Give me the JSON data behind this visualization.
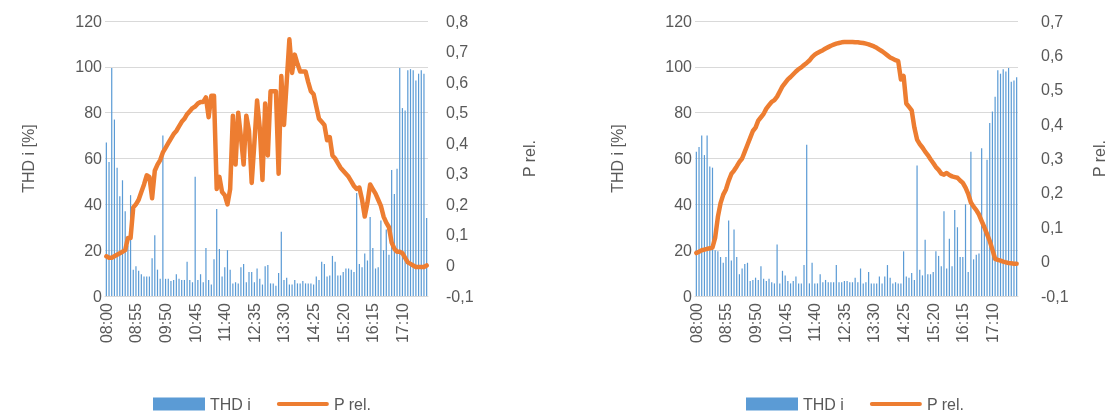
{
  "chart_data": [
    {
      "type": "bar",
      "ylabel": "THD i [%]",
      "y2label": "P rel.",
      "categories": [
        "08:00",
        null,
        null,
        null,
        null,
        null,
        null,
        null,
        null,
        null,
        null,
        "08:55",
        null,
        null,
        null,
        null,
        null,
        null,
        null,
        null,
        null,
        null,
        "09:50",
        null,
        null,
        null,
        null,
        null,
        null,
        null,
        null,
        null,
        null,
        "10:45",
        null,
        null,
        null,
        null,
        null,
        null,
        null,
        null,
        null,
        null,
        "11:40",
        null,
        null,
        null,
        null,
        null,
        null,
        null,
        null,
        null,
        null,
        "12:35",
        null,
        null,
        null,
        null,
        null,
        null,
        null,
        null,
        null,
        null,
        "13:30",
        null,
        null,
        null,
        null,
        null,
        null,
        null,
        null,
        null,
        null,
        "14:25",
        null,
        null,
        null,
        null,
        null,
        null,
        null,
        null,
        null,
        null,
        "15:20",
        null,
        null,
        null,
        null,
        null,
        null,
        null,
        null,
        null,
        null,
        "16:15",
        null,
        null,
        null,
        null,
        null,
        null,
        null,
        null,
        null,
        null,
        "17:10",
        null,
        null,
        null,
        null,
        null,
        null,
        null,
        null,
        null
      ],
      "series": [
        {
          "name": "THD i",
          "color": "#5b9bd5",
          "values": [
            67,
            58.5,
            99.5,
            77,
            56,
            43.5,
            50.5,
            37,
            22,
            44,
            11.5,
            13,
            11,
            9.5,
            8.5,
            8.5,
            8.5,
            16.5,
            26.5,
            11.5,
            7.5,
            70,
            7.5,
            7.5,
            6.5,
            7,
            9.5,
            7.5,
            7,
            7,
            15,
            7,
            6,
            52,
            7,
            9.5,
            6,
            21,
            7,
            5,
            16,
            38,
            20.5,
            8.5,
            12.5,
            20,
            11.5,
            5.5,
            6,
            5.5,
            12.5,
            14,
            6,
            10.5,
            10.5,
            6,
            12,
            7.5,
            5,
            13,
            13.5,
            5.5,
            5.5,
            4.5,
            10,
            28,
            7,
            8,
            5,
            5,
            7,
            5.5,
            5.5,
            6.5,
            5.5,
            5.5,
            5.5,
            5,
            8.5,
            7,
            15,
            14,
            8.5,
            9,
            17.5,
            15,
            9,
            9,
            10.5,
            12,
            12,
            11.5,
            10.5,
            45,
            14,
            12.5,
            18.5,
            15.5,
            34.5,
            21,
            12,
            12.5,
            33,
            20,
            29,
            18,
            55,
            44.5,
            55.5,
            99.5,
            82,
            81,
            98.5,
            99,
            98.5,
            94,
            97,
            98.5,
            97,
            34
          ]
        },
        {
          "name": "P rel.",
          "type": "line",
          "axis": "y2",
          "color": "#ed7d31",
          "values": [
            0.03,
            0.025,
            0.025,
            0.03,
            0.035,
            0.04,
            0.045,
            0.05,
            0.09,
            0.09,
            0.19,
            0.2,
            0.215,
            0.24,
            0.265,
            0.295,
            0.29,
            0.22,
            0.31,
            0.33,
            0.345,
            0.37,
            0.385,
            0.4,
            0.415,
            0.43,
            0.44,
            0.455,
            0.47,
            0.48,
            0.495,
            0.505,
            0.515,
            0.52,
            0.53,
            0.535,
            0.535,
            0.55,
            0.485,
            0.555,
            0.555,
            0.25,
            0.29,
            0.24,
            0.23,
            0.2,
            0.25,
            0.49,
            0.33,
            0.5,
            0.42,
            0.33,
            0.49,
            0.44,
            0.27,
            0.4,
            0.54,
            0.45,
            0.28,
            0.53,
            0.36,
            0.57,
            0.57,
            0.57,
            0.3,
            0.62,
            0.46,
            0.6,
            0.74,
            0.63,
            0.69,
            0.66,
            0.635,
            0.635,
            0.635,
            0.6,
            0.57,
            0.56,
            0.52,
            0.48,
            0.47,
            0.46,
            0.41,
            0.42,
            0.36,
            0.35,
            0.335,
            0.32,
            0.31,
            0.3,
            0.29,
            0.275,
            0.26,
            0.25,
            0.255,
            0.215,
            0.16,
            0.205,
            0.265,
            0.25,
            0.235,
            0.215,
            0.195,
            0.16,
            0.14,
            0.125,
            0.075,
            0.055,
            0.045,
            0.045,
            0.04,
            0.025,
            0.01,
            0.005,
            0,
            -0.005,
            -0.005,
            -0.005,
            -0.005,
            0
          ]
        }
      ],
      "ylim": [
        0,
        120
      ],
      "yticks": [
        0,
        20,
        40,
        60,
        80,
        100,
        120
      ],
      "y2lim": [
        -0.1,
        0.8
      ],
      "y2ticks": [
        {
          "value": -0.1,
          "label": "-0,1"
        },
        0,
        {
          "value": 0.1,
          "label": "0,1"
        },
        {
          "value": 0.2,
          "label": "0,2"
        },
        {
          "value": 0.3,
          "label": "0,3"
        },
        {
          "value": 0.4,
          "label": "0,4"
        },
        {
          "value": 0.5,
          "label": "0,5"
        },
        {
          "value": 0.6,
          "label": "0,6"
        },
        {
          "value": 0.7,
          "label": "0,7"
        },
        {
          "value": 0.8,
          "label": "0,8"
        }
      ],
      "grid": "y",
      "legend": "bottom",
      "marker": "none"
    },
    {
      "type": "bar",
      "ylabel": "THD i [%]",
      "y2label": "P rel.",
      "categories": [
        "08:00",
        null,
        null,
        null,
        null,
        null,
        null,
        null,
        null,
        null,
        null,
        "08:55",
        null,
        null,
        null,
        null,
        null,
        null,
        null,
        null,
        null,
        null,
        "09:50",
        null,
        null,
        null,
        null,
        null,
        null,
        null,
        null,
        null,
        null,
        "10:45",
        null,
        null,
        null,
        null,
        null,
        null,
        null,
        null,
        null,
        null,
        "11:40",
        null,
        null,
        null,
        null,
        null,
        null,
        null,
        null,
        null,
        null,
        "12:35",
        null,
        null,
        null,
        null,
        null,
        null,
        null,
        null,
        null,
        null,
        "13:30",
        null,
        null,
        null,
        null,
        null,
        null,
        null,
        null,
        null,
        null,
        "14:25",
        null,
        null,
        null,
        null,
        null,
        null,
        null,
        null,
        null,
        null,
        "15:20",
        null,
        null,
        null,
        null,
        null,
        null,
        null,
        null,
        null,
        null,
        "16:15",
        null,
        null,
        null,
        null,
        null,
        null,
        null,
        null,
        null,
        null,
        "17:10",
        null,
        null,
        null,
        null,
        null,
        null,
        null,
        null,
        null
      ],
      "series": [
        {
          "name": "THD i",
          "color": "#5b9bd5",
          "values": [
            63,
            65,
            70,
            61.5,
            70,
            56.5,
            56,
            20,
            19.5,
            17,
            14.5,
            17,
            33,
            15.5,
            29,
            17,
            9.5,
            12,
            14,
            14.5,
            6.5,
            7,
            8,
            7,
            13,
            7.5,
            6.5,
            7.5,
            6,
            5.5,
            22.5,
            5.5,
            11,
            9,
            6.5,
            5.5,
            6.5,
            8.5,
            5.5,
            5.5,
            13.5,
            66,
            5.5,
            14.5,
            5.5,
            5.5,
            9.5,
            6,
            7,
            6,
            6,
            6,
            13.5,
            6,
            6,
            6.5,
            6.5,
            6,
            6,
            8,
            6,
            12,
            5.5,
            6,
            10.5,
            5.5,
            5.5,
            5.5,
            8.5,
            5.5,
            8.5,
            13.5,
            8,
            5.5,
            6,
            5.5,
            5.5,
            19.5,
            8.5,
            8,
            10,
            7,
            57,
            11.5,
            9,
            24.5,
            9.5,
            9.5,
            10.5,
            19.5,
            17.5,
            13,
            37,
            12,
            25,
            13,
            37.5,
            30,
            17,
            17,
            40,
            10.5,
            63,
            16,
            18,
            18.5,
            64.5,
            32,
            59.5,
            75.5,
            80.5,
            87,
            98.5,
            97,
            99,
            98,
            99.5,
            93.5,
            94,
            95.5
          ]
        },
        {
          "name": "P rel.",
          "type": "line",
          "axis": "y2",
          "color": "#ed7d31",
          "values": [
            0.025,
            0.029,
            0.033,
            0.035,
            0.037,
            0.039,
            0.041,
            0.07,
            0.13,
            0.17,
            0.195,
            0.21,
            0.235,
            0.255,
            0.265,
            0.277,
            0.29,
            0.3,
            0.32,
            0.34,
            0.36,
            0.38,
            0.39,
            0.41,
            0.42,
            0.43,
            0.445,
            0.455,
            0.465,
            0.47,
            0.48,
            0.495,
            0.51,
            0.52,
            0.53,
            0.537,
            0.545,
            0.553,
            0.56,
            0.565,
            0.572,
            0.578,
            0.585,
            0.595,
            0.602,
            0.607,
            0.611,
            0.615,
            0.62,
            0.624,
            0.628,
            0.631,
            0.634,
            0.636,
            0.638,
            0.639,
            0.639,
            0.639,
            0.639,
            0.638,
            0.638,
            0.637,
            0.636,
            0.634,
            0.632,
            0.629,
            0.626,
            0.622,
            0.617,
            0.612,
            0.606,
            0.6,
            0.594,
            0.59,
            0.586,
            0.583,
            0.53,
            0.54,
            0.46,
            0.45,
            0.44,
            0.39,
            0.355,
            0.342,
            0.332,
            0.32,
            0.31,
            0.298,
            0.287,
            0.275,
            0.267,
            0.256,
            0.253,
            0.258,
            0.252,
            0.248,
            0.246,
            0.244,
            0.236,
            0.229,
            0.215,
            0.197,
            0.172,
            0.16,
            0.15,
            0.137,
            0.118,
            0.1,
            0.08,
            0.06,
            0.035,
            0.008,
            0.005,
            0.003,
            0,
            -0.002,
            -0.004,
            -0.005,
            -0.006,
            -0.006
          ]
        }
      ],
      "ylim": [
        0,
        120
      ],
      "yticks": [
        0,
        20,
        40,
        60,
        80,
        100,
        120
      ],
      "y2lim": [
        -0.1,
        0.7
      ],
      "y2ticks": [
        {
          "value": -0.1,
          "label": "-0,1"
        },
        0,
        {
          "value": 0.1,
          "label": "0,1"
        },
        {
          "value": 0.2,
          "label": "0,2"
        },
        {
          "value": 0.3,
          "label": "0,3"
        },
        {
          "value": 0.4,
          "label": "0,4"
        },
        {
          "value": 0.5,
          "label": "0,5"
        },
        {
          "value": 0.6,
          "label": "0,6"
        },
        {
          "value": 0.7,
          "label": "0,7"
        }
      ],
      "grid": "y",
      "legend": "bottom",
      "marker": "none"
    }
  ]
}
